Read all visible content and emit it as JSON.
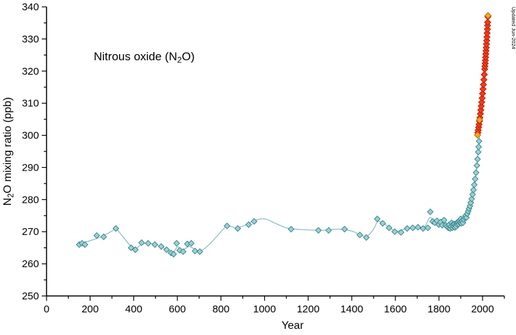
{
  "updated_label": "Updated Jun-2024",
  "chart_data": {
    "type": "scatter",
    "title": "Nitrous oxide (N2O)",
    "annotation": {
      "pre": "Nitrous oxide (N",
      "sub": "2",
      "post": "O)"
    },
    "xlabel": "Year",
    "ylabel": {
      "pre": "N",
      "sub": "2",
      "post": "O mixing ratio (ppb)"
    },
    "xlim": [
      0,
      2100
    ],
    "ylim": [
      250,
      340
    ],
    "x_major_ticks": [
      0,
      200,
      400,
      600,
      800,
      1000,
      1200,
      1400,
      1600,
      1800,
      2000
    ],
    "x_minor_step": 100,
    "y_major_step": 10,
    "y_minor_step": 5,
    "grid": false,
    "legend": "none",
    "colors": {
      "ice_core_fill": "#9ed0cd",
      "ice_core_stroke": "#2e7f8f",
      "trend_line": "#8fbfc4",
      "instrumental_fill": "#f23b1c",
      "instrumental_stroke": "#b71c00",
      "highlight_fill": "#ffa21f",
      "highlight_stroke": "#b36a00",
      "axis": "#000000",
      "updated_text": "#8a8a8a"
    },
    "trend_line": {
      "name": "smoothed-ice-core-trend",
      "points": [
        [
          150,
          266.2
        ],
        [
          200,
          267.2
        ],
        [
          250,
          268.4
        ],
        [
          300,
          270.2
        ],
        [
          320,
          270.8
        ],
        [
          350,
          268.5
        ],
        [
          400,
          264.8
        ],
        [
          440,
          266.2
        ],
        [
          480,
          266.3
        ],
        [
          520,
          265.6
        ],
        [
          555,
          264.2
        ],
        [
          583,
          263.6
        ],
        [
          600,
          265.3
        ],
        [
          625,
          264.4
        ],
        [
          655,
          265.4
        ],
        [
          690,
          264.2
        ],
        [
          720,
          264.5
        ],
        [
          760,
          267.0
        ],
        [
          800,
          270.0
        ],
        [
          830,
          271.8
        ],
        [
          870,
          271.2
        ],
        [
          910,
          272.0
        ],
        [
          950,
          273.4
        ],
        [
          1000,
          274.0
        ],
        [
          1050,
          272.6
        ],
        [
          1100,
          271.2
        ],
        [
          1160,
          270.7
        ],
        [
          1220,
          270.5
        ],
        [
          1280,
          270.5
        ],
        [
          1340,
          270.8
        ],
        [
          1400,
          270.2
        ],
        [
          1440,
          269.0
        ],
        [
          1470,
          268.6
        ],
        [
          1500,
          270.8
        ],
        [
          1520,
          273.2
        ],
        [
          1550,
          272.4
        ],
        [
          1600,
          270.2
        ],
        [
          1640,
          270.8
        ],
        [
          1690,
          271.3
        ],
        [
          1730,
          271.1
        ],
        [
          1758,
          274.4
        ],
        [
          1775,
          273.0
        ],
        [
          1795,
          272.8
        ],
        [
          1815,
          272.5
        ],
        [
          1840,
          271.8
        ],
        [
          1865,
          271.7
        ],
        [
          1890,
          272.6
        ],
        [
          1910,
          273.4
        ],
        [
          1930,
          275.4
        ],
        [
          1950,
          279.5
        ],
        [
          1965,
          285.0
        ],
        [
          1975,
          291.0
        ],
        [
          1983,
          297.5
        ],
        [
          1986,
          300.0
        ]
      ]
    },
    "series": [
      {
        "name": "ice-core",
        "marker": "diamond",
        "marker_size": 4.2,
        "points": [
          [
            150,
            266.0
          ],
          [
            163,
            266.4
          ],
          [
            176,
            266.0
          ],
          [
            230,
            268.8
          ],
          [
            262,
            268.4
          ],
          [
            318,
            271.0
          ],
          [
            388,
            265.0
          ],
          [
            407,
            264.4
          ],
          [
            436,
            266.6
          ],
          [
            466,
            266.4
          ],
          [
            497,
            266.0
          ],
          [
            526,
            265.4
          ],
          [
            551,
            264.4
          ],
          [
            571,
            263.4
          ],
          [
            583,
            263.0
          ],
          [
            597,
            266.4
          ],
          [
            611,
            264.2
          ],
          [
            627,
            263.8
          ],
          [
            646,
            266.2
          ],
          [
            664,
            266.4
          ],
          [
            681,
            264.0
          ],
          [
            703,
            263.8
          ],
          [
            828,
            271.8
          ],
          [
            877,
            271.0
          ],
          [
            927,
            272.2
          ],
          [
            952,
            273.2
          ],
          [
            1122,
            270.8
          ],
          [
            1247,
            270.4
          ],
          [
            1294,
            270.4
          ],
          [
            1367,
            270.8
          ],
          [
            1437,
            269.0
          ],
          [
            1467,
            268.2
          ],
          [
            1517,
            274.0
          ],
          [
            1542,
            272.6
          ],
          [
            1571,
            271.2
          ],
          [
            1597,
            270.0
          ],
          [
            1626,
            269.8
          ],
          [
            1654,
            271.0
          ],
          [
            1680,
            271.2
          ],
          [
            1704,
            271.4
          ],
          [
            1727,
            271.0
          ],
          [
            1749,
            271.2
          ],
          [
            1760,
            276.2
          ],
          [
            1771,
            273.2
          ],
          [
            1781,
            272.8
          ],
          [
            1791,
            273.4
          ],
          [
            1799,
            272.2
          ],
          [
            1807,
            273.0
          ],
          [
            1815,
            272.0
          ],
          [
            1823,
            273.6
          ],
          [
            1831,
            272.0
          ],
          [
            1837,
            271.6
          ],
          [
            1843,
            271.2
          ],
          [
            1847,
            272.2
          ],
          [
            1851,
            271.0
          ],
          [
            1855,
            271.6
          ],
          [
            1858,
            272.8
          ],
          [
            1861,
            271.2
          ],
          [
            1864,
            272.2
          ],
          [
            1867,
            271.6
          ],
          [
            1870,
            272.4
          ],
          [
            1873,
            271.3
          ],
          [
            1876,
            272.0
          ],
          [
            1879,
            271.6
          ],
          [
            1882,
            272.8
          ],
          [
            1885,
            272.2
          ],
          [
            1888,
            273.0
          ],
          [
            1891,
            272.4
          ],
          [
            1894,
            273.4
          ],
          [
            1897,
            272.8
          ],
          [
            1900,
            274.0
          ],
          [
            1902,
            272.6
          ],
          [
            1906,
            273.4
          ],
          [
            1910,
            272.8
          ],
          [
            1914,
            273.8
          ],
          [
            1918,
            274.4
          ],
          [
            1922,
            275.0
          ],
          [
            1926,
            274.4
          ],
          [
            1930,
            275.6
          ],
          [
            1934,
            276.4
          ],
          [
            1938,
            277.2
          ],
          [
            1942,
            278.0
          ],
          [
            1946,
            279.0
          ],
          [
            1950,
            280.2
          ],
          [
            1954,
            281.6
          ],
          [
            1958,
            283.0
          ],
          [
            1962,
            284.6
          ],
          [
            1966,
            286.4
          ],
          [
            1970,
            288.4
          ],
          [
            1974,
            290.6
          ],
          [
            1977,
            292.6
          ],
          [
            1980,
            294.8
          ],
          [
            1982,
            296.4
          ],
          [
            1984,
            298.2
          ]
        ]
      },
      {
        "name": "instrumental",
        "marker": "diamond",
        "marker_size": 4.6,
        "points": [
          [
            1978.5,
            300.8
          ],
          [
            1980,
            301.6
          ],
          [
            1982,
            302.5
          ],
          [
            1984,
            303.4
          ],
          [
            1986,
            304.4
          ],
          [
            1988,
            305.5
          ],
          [
            1990,
            306.7
          ],
          [
            1992,
            307.9
          ],
          [
            1994,
            309.1
          ],
          [
            1996,
            310.3
          ],
          [
            1998,
            311.6
          ],
          [
            2000,
            313.0
          ],
          [
            2002,
            314.4
          ],
          [
            2004,
            315.8
          ],
          [
            2006,
            317.3
          ],
          [
            2008,
            318.9
          ],
          [
            2010,
            320.6
          ],
          [
            2011,
            321.5
          ],
          [
            2012,
            322.4
          ],
          [
            2013,
            323.3
          ],
          [
            2014,
            324.3
          ],
          [
            2015,
            325.3
          ],
          [
            2016,
            326.3
          ],
          [
            2017,
            327.3
          ],
          [
            2018,
            328.4
          ],
          [
            2019,
            329.5
          ],
          [
            2020,
            330.6
          ],
          [
            2021,
            331.8
          ],
          [
            2022,
            333.0
          ],
          [
            2023,
            334.2
          ],
          [
            2023.5,
            335.2
          ],
          [
            2024.5,
            336.9
          ]
        ]
      },
      {
        "name": "instrumental-highlight",
        "marker": "diamond",
        "marker_size": 4.6,
        "points": [
          [
            1977,
            300.1
          ],
          [
            1986,
            304.8
          ],
          [
            2025,
            337.3
          ]
        ]
      }
    ]
  }
}
